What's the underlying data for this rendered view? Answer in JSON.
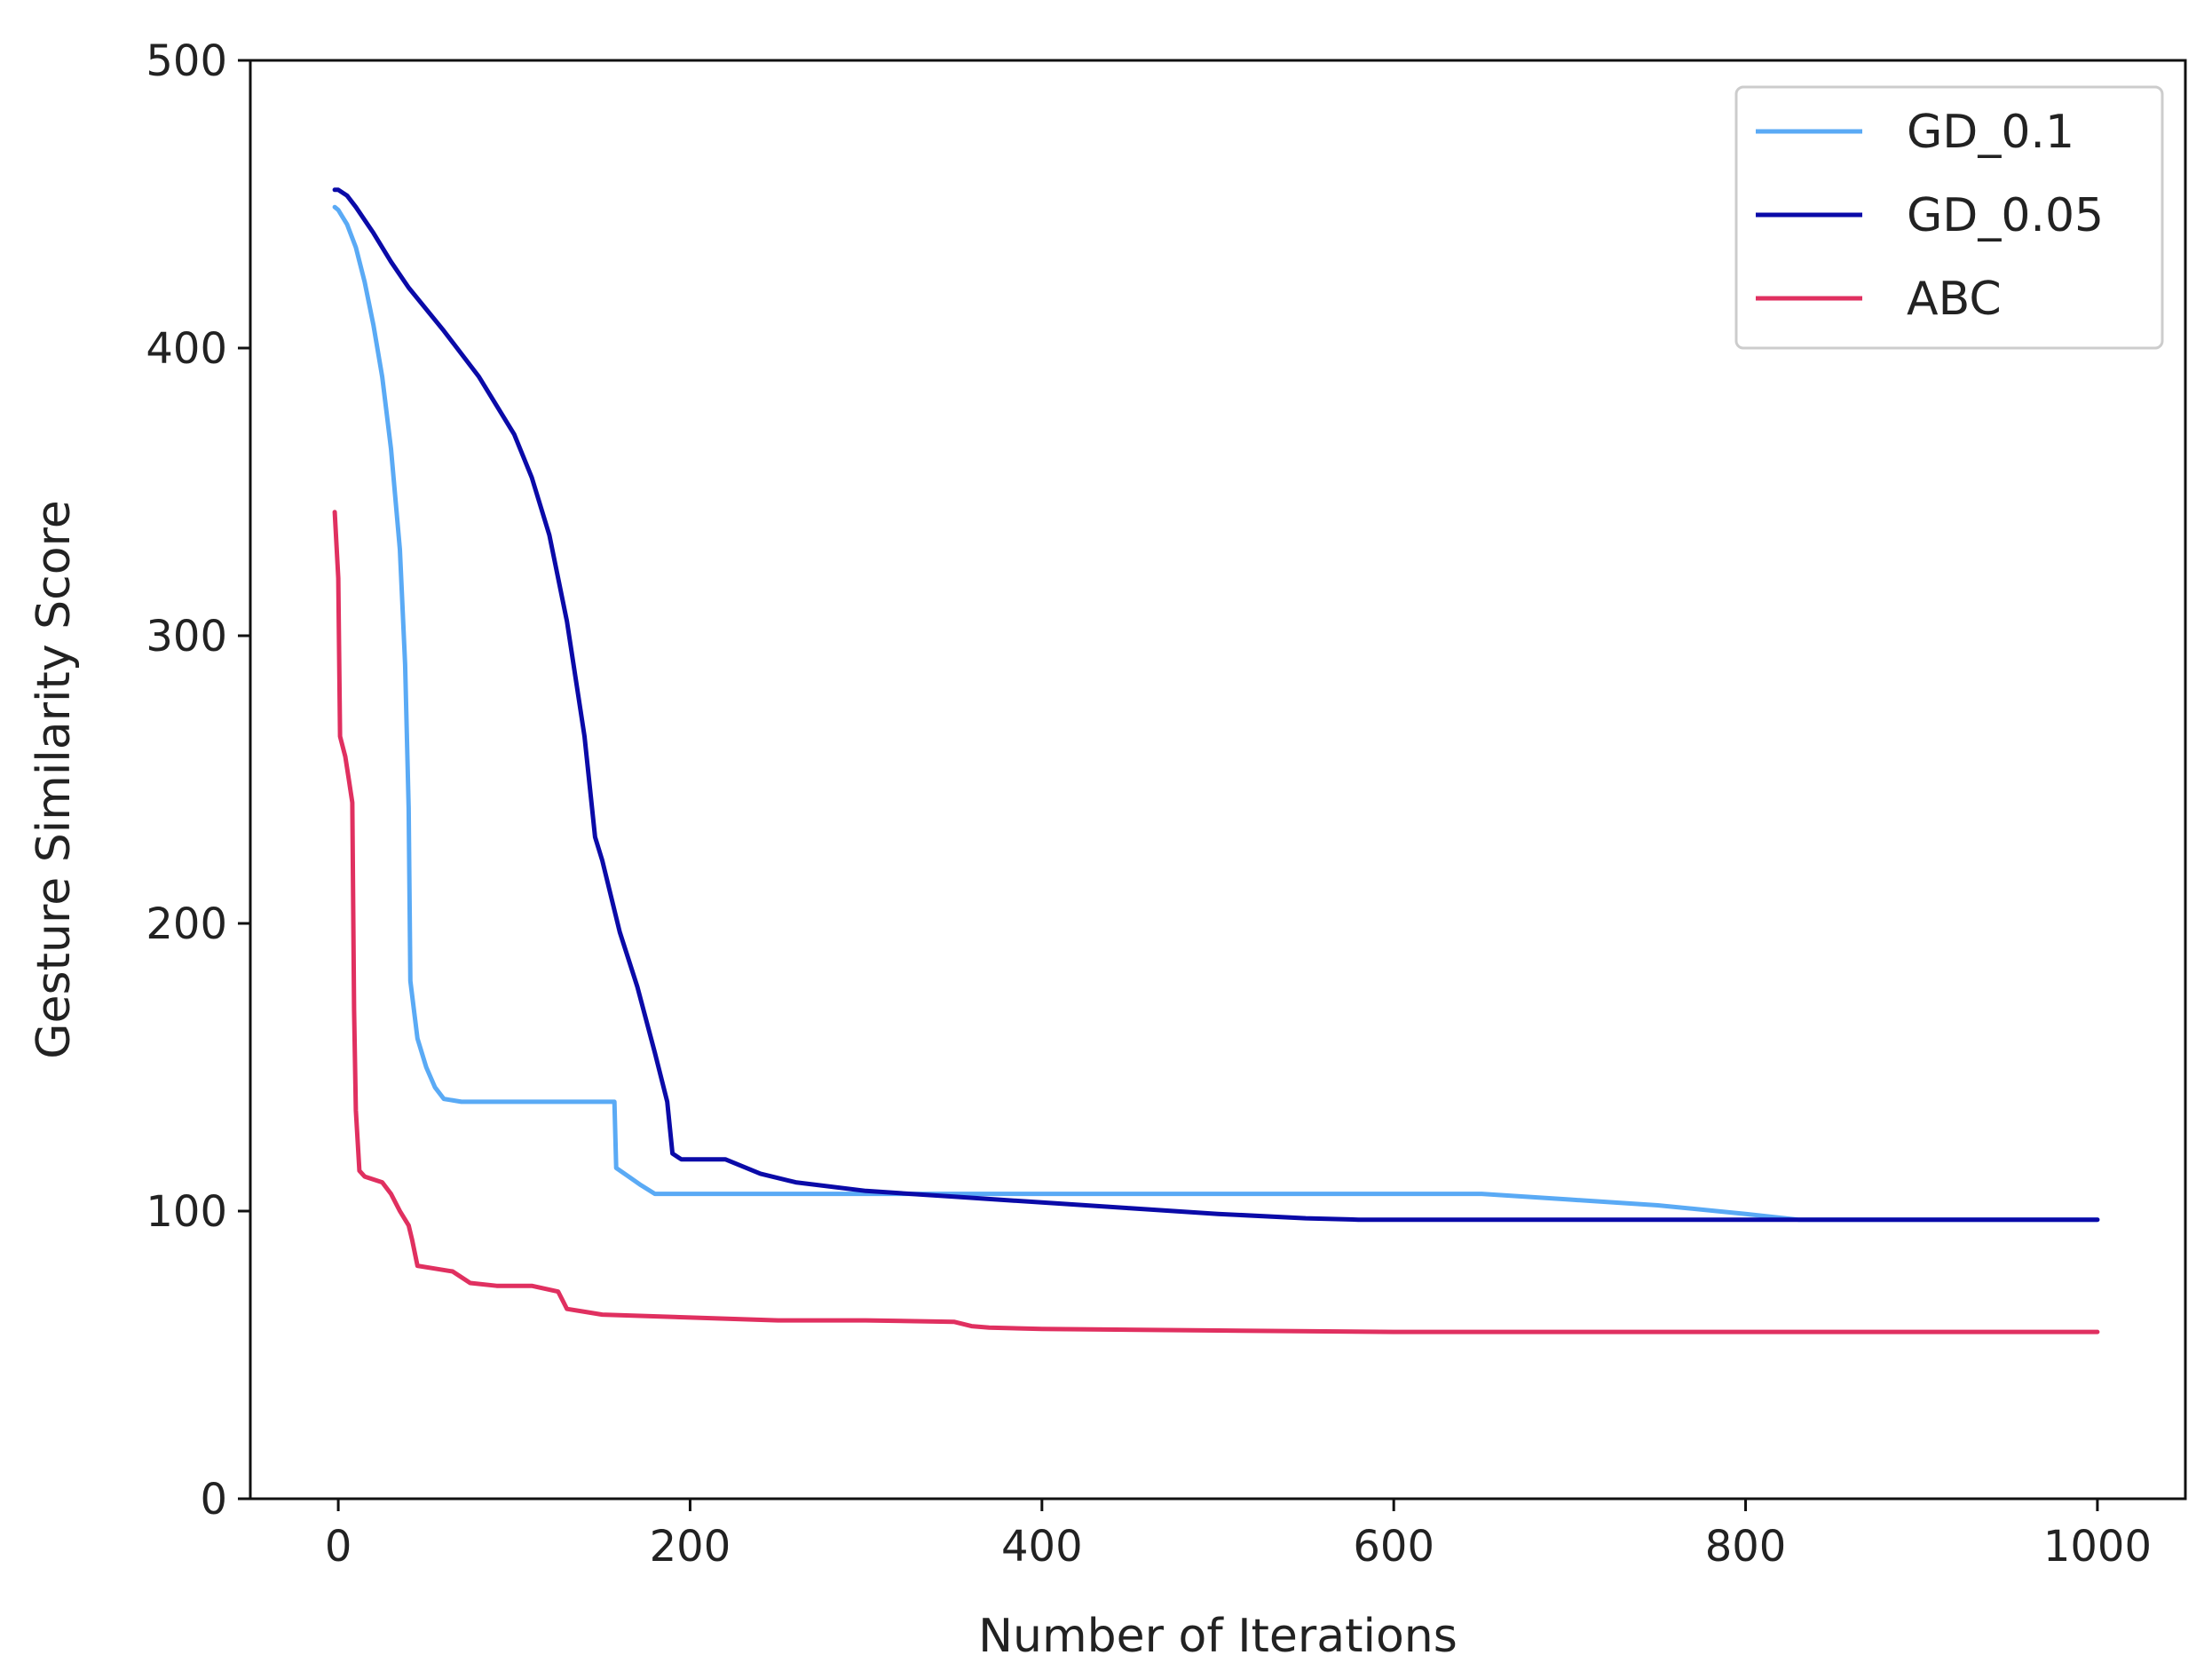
{
  "chart_data": {
    "type": "line",
    "title": "",
    "xlabel": "Number of Iterations",
    "ylabel": "Gesture Similarity Score",
    "xlim": [
      -50,
      1050
    ],
    "ylim": [
      0,
      500
    ],
    "x_ticks": [
      0,
      200,
      400,
      600,
      800,
      1000
    ],
    "y_ticks": [
      0,
      100,
      200,
      300,
      400,
      500
    ],
    "grid": false,
    "legend_position": "top-right",
    "series": [
      {
        "name": "GD_0.1",
        "color": "#5aaaf5",
        "points": [
          [
            -2,
            449
          ],
          [
            0,
            448
          ],
          [
            5,
            443
          ],
          [
            10,
            435
          ],
          [
            15,
            423
          ],
          [
            20,
            408
          ],
          [
            25,
            390
          ],
          [
            30,
            365
          ],
          [
            35,
            330
          ],
          [
            38,
            290
          ],
          [
            40,
            240
          ],
          [
            41,
            180
          ],
          [
            45,
            160
          ],
          [
            50,
            150
          ],
          [
            55,
            143
          ],
          [
            60,
            139
          ],
          [
            70,
            138
          ],
          [
            100,
            138
          ],
          [
            130,
            138
          ],
          [
            157,
            138
          ],
          [
            158,
            115
          ],
          [
            165,
            112
          ],
          [
            172,
            109
          ],
          [
            180,
            106
          ],
          [
            200,
            106
          ],
          [
            300,
            106
          ],
          [
            400,
            106
          ],
          [
            500,
            106
          ],
          [
            600,
            106
          ],
          [
            650,
            106
          ],
          [
            700,
            104
          ],
          [
            750,
            102
          ],
          [
            800,
            99
          ],
          [
            830,
            97
          ],
          [
            900,
            97
          ],
          [
            1000,
            97
          ]
        ]
      },
      {
        "name": "GD_0.05",
        "color": "#0a0aa8",
        "points": [
          [
            -2,
            455
          ],
          [
            0,
            455
          ],
          [
            5,
            453
          ],
          [
            10,
            449
          ],
          [
            20,
            440
          ],
          [
            30,
            430
          ],
          [
            40,
            421
          ],
          [
            60,
            406
          ],
          [
            80,
            390
          ],
          [
            100,
            370
          ],
          [
            110,
            355
          ],
          [
            120,
            335
          ],
          [
            130,
            305
          ],
          [
            140,
            265
          ],
          [
            146,
            230
          ],
          [
            150,
            222
          ],
          [
            160,
            197
          ],
          [
            170,
            178
          ],
          [
            180,
            155
          ],
          [
            187,
            138
          ],
          [
            190,
            120
          ],
          [
            195,
            118
          ],
          [
            205,
            118
          ],
          [
            215,
            118
          ],
          [
            220,
            118
          ],
          [
            240,
            113
          ],
          [
            260,
            110
          ],
          [
            300,
            107
          ],
          [
            350,
            105
          ],
          [
            400,
            103
          ],
          [
            450,
            101
          ],
          [
            500,
            99
          ],
          [
            550,
            97.5
          ],
          [
            580,
            97
          ],
          [
            700,
            97
          ],
          [
            800,
            97
          ],
          [
            900,
            97
          ],
          [
            1000,
            97
          ]
        ]
      },
      {
        "name": "ABC",
        "color": "#e03060",
        "points": [
          [
            -2,
            343
          ],
          [
            0,
            320
          ],
          [
            1,
            265
          ],
          [
            4,
            258
          ],
          [
            6,
            250
          ],
          [
            8,
            242
          ],
          [
            9,
            170
          ],
          [
            10,
            135
          ],
          [
            12,
            114
          ],
          [
            15,
            112
          ],
          [
            20,
            111
          ],
          [
            25,
            110
          ],
          [
            30,
            106
          ],
          [
            35,
            100
          ],
          [
            40,
            95
          ],
          [
            42,
            90
          ],
          [
            45,
            81
          ],
          [
            55,
            80
          ],
          [
            65,
            79
          ],
          [
            75,
            75
          ],
          [
            90,
            74
          ],
          [
            110,
            74
          ],
          [
            125,
            72
          ],
          [
            130,
            66
          ],
          [
            140,
            65
          ],
          [
            150,
            64
          ],
          [
            200,
            63
          ],
          [
            250,
            62
          ],
          [
            300,
            62
          ],
          [
            350,
            61.5
          ],
          [
            360,
            60
          ],
          [
            370,
            59.5
          ],
          [
            400,
            59
          ],
          [
            500,
            58.5
          ],
          [
            600,
            58
          ],
          [
            700,
            58
          ],
          [
            800,
            58
          ],
          [
            900,
            58
          ],
          [
            1000,
            58
          ]
        ]
      }
    ]
  }
}
